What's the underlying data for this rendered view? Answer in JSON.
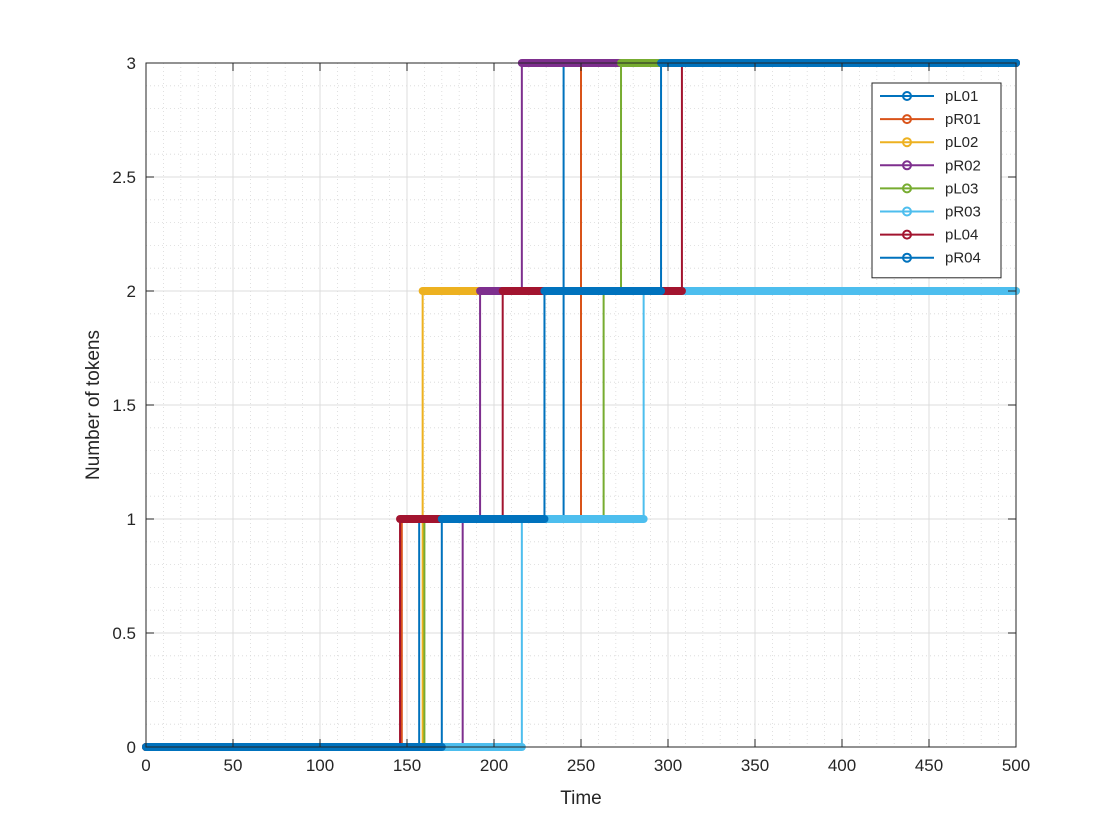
{
  "chart_data": {
    "type": "line",
    "style": "stairs",
    "title": "",
    "xlabel": "Time",
    "ylabel": "Number of tokens",
    "xlim": [
      0,
      500
    ],
    "ylim": [
      0,
      3
    ],
    "xticks": [
      "0",
      "50",
      "100",
      "150",
      "200",
      "250",
      "300",
      "350",
      "400",
      "450",
      "500"
    ],
    "yticks": [
      "0",
      "0.5",
      "1",
      "1.5",
      "2",
      "2.5",
      "3"
    ],
    "grid": "major+minor",
    "legend_position": "top-right",
    "series": [
      {
        "name": "pL01",
        "color": "#0072BD",
        "points": [
          [
            0,
            0
          ],
          [
            157,
            0
          ],
          [
            157,
            1
          ],
          [
            240,
            1
          ],
          [
            240,
            3
          ],
          [
            500,
            3
          ]
        ]
      },
      {
        "name": "pR01",
        "color": "#D95319",
        "points": [
          [
            0,
            0
          ],
          [
            147,
            0
          ],
          [
            147,
            1
          ],
          [
            250,
            1
          ],
          [
            250,
            3
          ],
          [
            500,
            3
          ]
        ]
      },
      {
        "name": "pL02",
        "color": "#EDB120",
        "points": [
          [
            0,
            0
          ],
          [
            159,
            0
          ],
          [
            159,
            2
          ],
          [
            500,
            2
          ]
        ]
      },
      {
        "name": "pR02",
        "color": "#7E2F8E",
        "points": [
          [
            0,
            0
          ],
          [
            182,
            0
          ],
          [
            182,
            1
          ],
          [
            192,
            1
          ],
          [
            192,
            2
          ],
          [
            216,
            2
          ],
          [
            216,
            3
          ],
          [
            500,
            3
          ]
        ]
      },
      {
        "name": "pL03",
        "color": "#77AC30",
        "points": [
          [
            0,
            0
          ],
          [
            160,
            0
          ],
          [
            160,
            1
          ],
          [
            263,
            1
          ],
          [
            263,
            2
          ],
          [
            273,
            2
          ],
          [
            273,
            3
          ],
          [
            500,
            3
          ]
        ]
      },
      {
        "name": "pR03",
        "color": "#4DBEEE",
        "points": [
          [
            0,
            0
          ],
          [
            216,
            0
          ],
          [
            216,
            1
          ],
          [
            286,
            1
          ],
          [
            286,
            2
          ],
          [
            500,
            2
          ]
        ]
      },
      {
        "name": "pL04",
        "color": "#A2142F",
        "points": [
          [
            0,
            0
          ],
          [
            146,
            0
          ],
          [
            146,
            1
          ],
          [
            205,
            1
          ],
          [
            205,
            2
          ],
          [
            308,
            2
          ],
          [
            308,
            3
          ],
          [
            500,
            3
          ]
        ]
      },
      {
        "name": "pR04",
        "color": "#0072BD",
        "points": [
          [
            0,
            0
          ],
          [
            170,
            0
          ],
          [
            170,
            1
          ],
          [
            229,
            1
          ],
          [
            229,
            2
          ],
          [
            296,
            2
          ],
          [
            296,
            3
          ],
          [
            500,
            3
          ]
        ]
      }
    ]
  }
}
